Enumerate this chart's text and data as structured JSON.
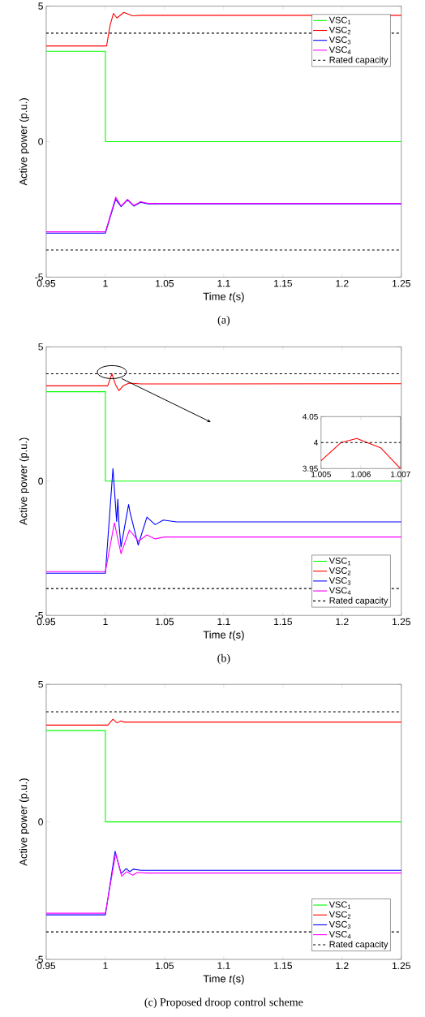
{
  "chart_data": [
    {
      "type": "line",
      "xlabel": "Time *t*(s)",
      "ylabel": "Active power (p.u.)",
      "xlim": [
        0.95,
        1.25
      ],
      "ylim": [
        -5,
        5
      ],
      "xticks": [
        0.95,
        1,
        1.05,
        1.1,
        1.15,
        1.2,
        1.25
      ],
      "yticks": [
        -5,
        0,
        5
      ],
      "legend": "top right",
      "annotations": [
        "(a)"
      ],
      "series": [
        {
          "name": "VSC$_{1}$",
          "color": "#00ff00",
          "x": [
            0.95,
            1.0,
            1.0,
            1.25
          ],
          "values": [
            3.33,
            3.33,
            0,
            0
          ]
        },
        {
          "name": "VSC$_{2}$",
          "color": "#ff0000",
          "x": [
            0.95,
            1.001,
            1.004,
            1.0068,
            1.0098,
            1.0155,
            1.023,
            1.03,
            1.25
          ],
          "values": [
            3.53,
            3.53,
            4.3,
            4.73,
            4.56,
            4.77,
            4.64,
            4.66,
            4.66
          ]
        },
        {
          "name": "VSC$_{3}$",
          "color": "#0000ff",
          "x": [
            0.95,
            1.0,
            1.004,
            1.0087,
            1.0133,
            1.0187,
            1.024,
            1.0297,
            1.036,
            1.25
          ],
          "values": [
            -3.38,
            -3.38,
            -2.8,
            -2.13,
            -2.4,
            -2.15,
            -2.38,
            -2.24,
            -2.3,
            -2.3
          ]
        },
        {
          "name": "VSC$_{4}$",
          "color": "#ff00ff",
          "x": [
            0.95,
            1.0,
            1.004,
            1.0087,
            1.0133,
            1.0187,
            1.024,
            1.0297,
            1.036,
            1.25
          ],
          "values": [
            -3.33,
            -3.33,
            -2.75,
            -2.05,
            -2.38,
            -2.13,
            -2.36,
            -2.22,
            -2.28,
            -2.28
          ]
        }
      ],
      "ref_lines": [
        {
          "axis": "y",
          "value": 4,
          "label": "Rated capacity",
          "color": "#000000",
          "line_style": "dashed"
        },
        {
          "axis": "y",
          "value": -4,
          "color": "#000000",
          "line_style": "dashed"
        }
      ]
    },
    {
      "type": "line",
      "xlabel": "Time *t*(s)",
      "ylabel": "Active power (p.u.)",
      "xlim": [
        0.95,
        1.25
      ],
      "ylim": [
        -5,
        5
      ],
      "xticks": [
        0.95,
        1,
        1.05,
        1.1,
        1.15,
        1.2,
        1.25
      ],
      "yticks": [
        -5,
        0,
        5
      ],
      "legend": "bottom right",
      "annotations": [
        "(b)"
      ],
      "series": [
        {
          "name": "VSC$_{1}$",
          "color": "#00ff00",
          "x": [
            0.95,
            1.0,
            1.0,
            1.25
          ],
          "values": [
            3.33,
            3.33,
            0,
            0
          ]
        },
        {
          "name": "VSC$_{2}$",
          "color": "#ff0000",
          "x": [
            0.95,
            1.002,
            1.0055,
            1.0085,
            1.0114,
            1.015,
            1.02,
            1.03,
            1.25
          ],
          "values": [
            3.55,
            3.55,
            4.0,
            3.6,
            3.37,
            3.55,
            3.65,
            3.62,
            3.63
          ]
        },
        {
          "name": "VSC$_{3}$",
          "color": "#0000ff",
          "x": [
            0.95,
            1.0,
            1.0064,
            1.0095,
            1.0105,
            1.0115,
            1.0132,
            1.0196,
            1.021,
            1.0277,
            1.0351,
            1.042,
            1.049,
            1.06,
            1.25
          ],
          "values": [
            -3.43,
            -3.43,
            0.47,
            -1.5,
            -0.67,
            -1.6,
            -2.45,
            -0.87,
            -1.2,
            -2.38,
            -1.34,
            -1.62,
            -1.45,
            -1.52,
            -1.52
          ]
        },
        {
          "name": "VSC$_{4}$",
          "color": "#ff00ff",
          "x": [
            0.95,
            1.0,
            1.0076,
            1.0132,
            1.0203,
            1.028,
            1.035,
            1.042,
            1.05,
            1.25
          ],
          "values": [
            -3.37,
            -3.37,
            -1.55,
            -2.7,
            -1.82,
            -2.24,
            -2.0,
            -2.15,
            -2.08,
            -2.08
          ]
        }
      ],
      "ref_lines": [
        {
          "axis": "y",
          "value": 4,
          "label": "Rated capacity",
          "color": "#000000",
          "line_style": "dashed"
        },
        {
          "axis": "y",
          "value": -4,
          "color": "#000000",
          "line_style": "dashed"
        }
      ]
    },
    {
      "type": "line",
      "xlim": [
        1.005,
        1.007
      ],
      "ylim": [
        3.95,
        4.05
      ],
      "xticks": [
        1.005,
        1.006,
        1.007
      ],
      "yticks": [
        3.95,
        4,
        4.05
      ],
      "series": [
        {
          "color": "#ff0000",
          "x": [
            1.005,
            1.0055,
            1.0059,
            1.0065,
            1.007
          ],
          "values": [
            3.965,
            4.0,
            4.008,
            3.99,
            3.95
          ]
        }
      ],
      "ref_lines": [
        {
          "axis": "y",
          "value": 4,
          "color": "#000000",
          "line_style": "dashed"
        }
      ]
    },
    {
      "type": "line",
      "xlabel": "Time *t*(s)",
      "ylabel": "Active power (p.u.)",
      "xlim": [
        0.95,
        1.25
      ],
      "ylim": [
        -5,
        5
      ],
      "xticks": [
        0.95,
        1,
        1.05,
        1.1,
        1.15,
        1.2,
        1.25
      ],
      "yticks": [
        -5,
        0,
        5
      ],
      "legend": "bottom right",
      "annotations": [
        "(c) Proposed droop control scheme"
      ],
      "series": [
        {
          "name": "VSC$_{1}$",
          "color": "#00ff00",
          "x": [
            0.95,
            1.0,
            1.0,
            1.25
          ],
          "values": [
            3.32,
            3.32,
            0,
            0
          ]
        },
        {
          "name": "VSC$_{2}$",
          "color": "#ff0000",
          "x": [
            0.95,
            1.002,
            1.0064,
            1.0098,
            1.013,
            1.016,
            1.25
          ],
          "values": [
            3.52,
            3.52,
            3.73,
            3.6,
            3.67,
            3.63,
            3.63
          ]
        },
        {
          "name": "VSC$_{3}$",
          "color": "#0000ff",
          "x": [
            0.95,
            1.0,
            1.0082,
            1.0133,
            1.0176,
            1.0205,
            1.0235,
            1.03,
            1.25
          ],
          "values": [
            -3.38,
            -3.38,
            -1.07,
            -1.88,
            -1.7,
            -1.81,
            -1.72,
            -1.76,
            -1.76
          ]
        },
        {
          "name": "VSC$_{4}$",
          "color": "#ff00ff",
          "x": [
            0.95,
            1.0,
            1.0087,
            1.0138,
            1.018,
            1.023,
            1.027,
            1.035,
            1.25
          ],
          "values": [
            -3.32,
            -3.32,
            -1.15,
            -1.98,
            -1.81,
            -1.94,
            -1.84,
            -1.86,
            -1.86
          ]
        }
      ],
      "ref_lines": [
        {
          "axis": "y",
          "value": 4,
          "label": "Rated capacity",
          "color": "#000000",
          "line_style": "dashed"
        },
        {
          "axis": "y",
          "value": -4,
          "color": "#000000",
          "line_style": "dashed"
        }
      ]
    }
  ]
}
